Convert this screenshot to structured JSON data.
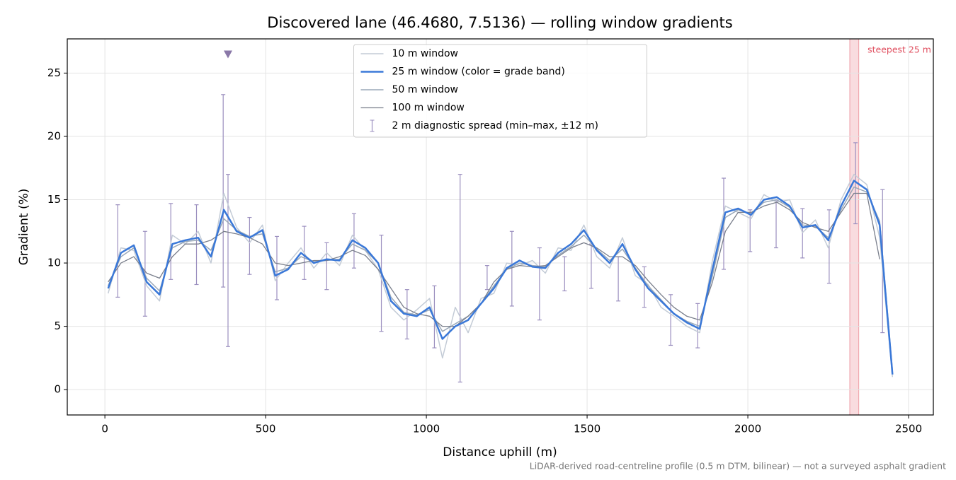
{
  "chart_data": {
    "type": "line",
    "title": "Discovered lane (46.4680, 7.5136) — rolling window gradients",
    "x_label": "Distance uphill (m)",
    "y_label": "Gradient (%)",
    "footnote": "LiDAR-derived road-centreline profile (0.5 m DTM, bilinear) — not a surveyed asphalt gradient",
    "xlim": [
      -117,
      2577
    ],
    "ylim": [
      -2.0,
      27.7
    ],
    "xticks": [
      0,
      500,
      1000,
      1500,
      2000,
      2500
    ],
    "yticks": [
      0,
      5,
      10,
      15,
      20,
      25
    ],
    "grid": true,
    "legend": "upper center",
    "x": [
      10,
      50,
      90,
      130,
      170,
      210,
      250,
      290,
      330,
      370,
      410,
      450,
      490,
      530,
      570,
      610,
      650,
      690,
      730,
      770,
      810,
      850,
      890,
      930,
      970,
      1010,
      1050,
      1090,
      1130,
      1170,
      1210,
      1250,
      1290,
      1330,
      1370,
      1410,
      1450,
      1490,
      1530,
      1570,
      1610,
      1650,
      1690,
      1730,
      1770,
      1810,
      1850,
      1890,
      1930,
      1970,
      2010,
      2050,
      2090,
      2130,
      2170,
      2210,
      2250,
      2290,
      2330,
      2370,
      2410,
      2450
    ],
    "series": [
      {
        "name": "10 m window",
        "color": "#c3cbd6",
        "width": 1.5,
        "values": [
          7.6,
          11.2,
          11.0,
          8.2,
          7.0,
          12.2,
          11.5,
          12.5,
          10.0,
          15.5,
          12.8,
          11.6,
          13.0,
          8.6,
          10.0,
          11.2,
          9.6,
          10.8,
          9.8,
          12.2,
          11.0,
          9.5,
          6.5,
          5.5,
          6.3,
          7.2,
          2.5,
          6.5,
          4.5,
          7.2,
          7.6,
          10.0,
          9.8,
          10.2,
          9.2,
          11.2,
          11.0,
          13.0,
          10.5,
          9.6,
          12.0,
          9.0,
          8.3,
          6.5,
          5.8,
          5.0,
          4.5,
          10.2,
          14.5,
          14.0,
          13.5,
          15.4,
          14.8,
          15.0,
          12.4,
          13.4,
          11.2,
          15.0,
          17.0,
          16.2,
          12.0,
          1.0
        ]
      },
      {
        "name": "25 m window (color = grade band)",
        "color": "#3a78d8",
        "width": 2.5,
        "values": [
          8.0,
          10.8,
          11.4,
          8.5,
          7.5,
          11.5,
          11.8,
          12.0,
          10.5,
          14.2,
          12.5,
          12.0,
          12.6,
          9.0,
          9.5,
          10.8,
          10.0,
          10.3,
          10.2,
          11.8,
          11.2,
          10.0,
          7.0,
          6.0,
          5.8,
          6.5,
          4.0,
          5.0,
          5.5,
          6.8,
          8.0,
          9.6,
          10.2,
          9.7,
          9.6,
          10.8,
          11.5,
          12.6,
          11.0,
          10.0,
          11.5,
          9.5,
          8.0,
          7.0,
          6.0,
          5.3,
          4.8,
          9.5,
          14.0,
          14.3,
          13.8,
          15.0,
          15.2,
          14.5,
          12.8,
          13.0,
          11.8,
          14.5,
          16.5,
          15.8,
          13.0,
          1.2
        ]
      },
      {
        "name": "50 m window",
        "color": "#9aa8b8",
        "width": 1.5,
        "values": [
          8.2,
          10.5,
          11.2,
          8.8,
          7.8,
          11.2,
          11.7,
          11.8,
          11.0,
          13.5,
          12.6,
          12.1,
          12.3,
          9.3,
          9.6,
          10.5,
          10.1,
          10.2,
          10.3,
          11.5,
          11.0,
          10.0,
          7.3,
          6.1,
          5.9,
          6.3,
          4.6,
          5.2,
          5.8,
          6.8,
          8.2,
          9.5,
          10.0,
          9.8,
          9.7,
          10.6,
          11.3,
          12.2,
          11.1,
          10.2,
          11.1,
          9.6,
          8.2,
          7.1,
          6.0,
          5.4,
          5.0,
          9.0,
          13.6,
          14.2,
          13.9,
          14.8,
          15.0,
          14.4,
          13.0,
          12.9,
          12.0,
          14.2,
          16.0,
          15.6,
          13.3,
          1.5
        ]
      },
      {
        "name": "100 m window",
        "color": "#7a7f8c",
        "width": 1.3,
        "values": [
          8.5,
          10.0,
          10.5,
          9.2,
          8.8,
          10.5,
          11.5,
          11.5,
          11.8,
          12.5,
          12.3,
          12.0,
          11.5,
          10.0,
          9.8,
          10.0,
          10.2,
          10.2,
          10.5,
          11.0,
          10.6,
          9.5,
          8.0,
          6.5,
          6.0,
          5.8,
          5.0,
          5.0,
          5.8,
          6.8,
          8.5,
          9.5,
          9.8,
          9.7,
          9.8,
          10.5,
          11.2,
          11.6,
          11.2,
          10.5,
          10.5,
          9.8,
          8.6,
          7.5,
          6.5,
          5.8,
          5.5,
          8.5,
          12.5,
          14.0,
          14.0,
          14.5,
          14.8,
          14.2,
          13.2,
          12.8,
          12.5,
          14.0,
          15.5,
          15.5,
          10.3,
          null
        ]
      }
    ],
    "spread": {
      "name": "2 m diagnostic spread (min–max, ±12 m)",
      "color": "#9b8fbf",
      "x": [
        40,
        125,
        205,
        285,
        368,
        383,
        450,
        535,
        620,
        690,
        775,
        860,
        940,
        1025,
        1105,
        1189,
        1266,
        1352,
        1430,
        1513,
        1597,
        1678,
        1760,
        1844,
        1925,
        2007,
        2088,
        2170,
        2253,
        2335,
        2419
      ],
      "low": [
        7.3,
        5.8,
        8.7,
        8.3,
        8.1,
        3.4,
        9.1,
        7.1,
        8.7,
        7.9,
        9.6,
        4.6,
        4.0,
        3.3,
        0.6,
        7.9,
        6.6,
        5.5,
        7.8,
        8.0,
        7.0,
        6.5,
        3.5,
        3.3,
        9.5,
        10.9,
        11.2,
        10.4,
        8.4,
        13.1,
        4.5
      ],
      "high": [
        14.6,
        12.5,
        14.7,
        14.6,
        23.3,
        17.0,
        13.6,
        12.1,
        12.9,
        11.6,
        13.9,
        12.2,
        7.9,
        8.2,
        17.0,
        9.8,
        12.5,
        11.2,
        10.5,
        11.5,
        10.5,
        9.7,
        7.5,
        6.8,
        16.7,
        14.2,
        14.9,
        14.3,
        14.2,
        19.5,
        15.8
      ]
    },
    "clip_marker": {
      "x": 383,
      "y": 26.5,
      "color": "#8a78a8"
    },
    "highlight": {
      "label": "steepest 25 m",
      "x": [
        2317,
        2345
      ],
      "color": "#e05060"
    }
  }
}
